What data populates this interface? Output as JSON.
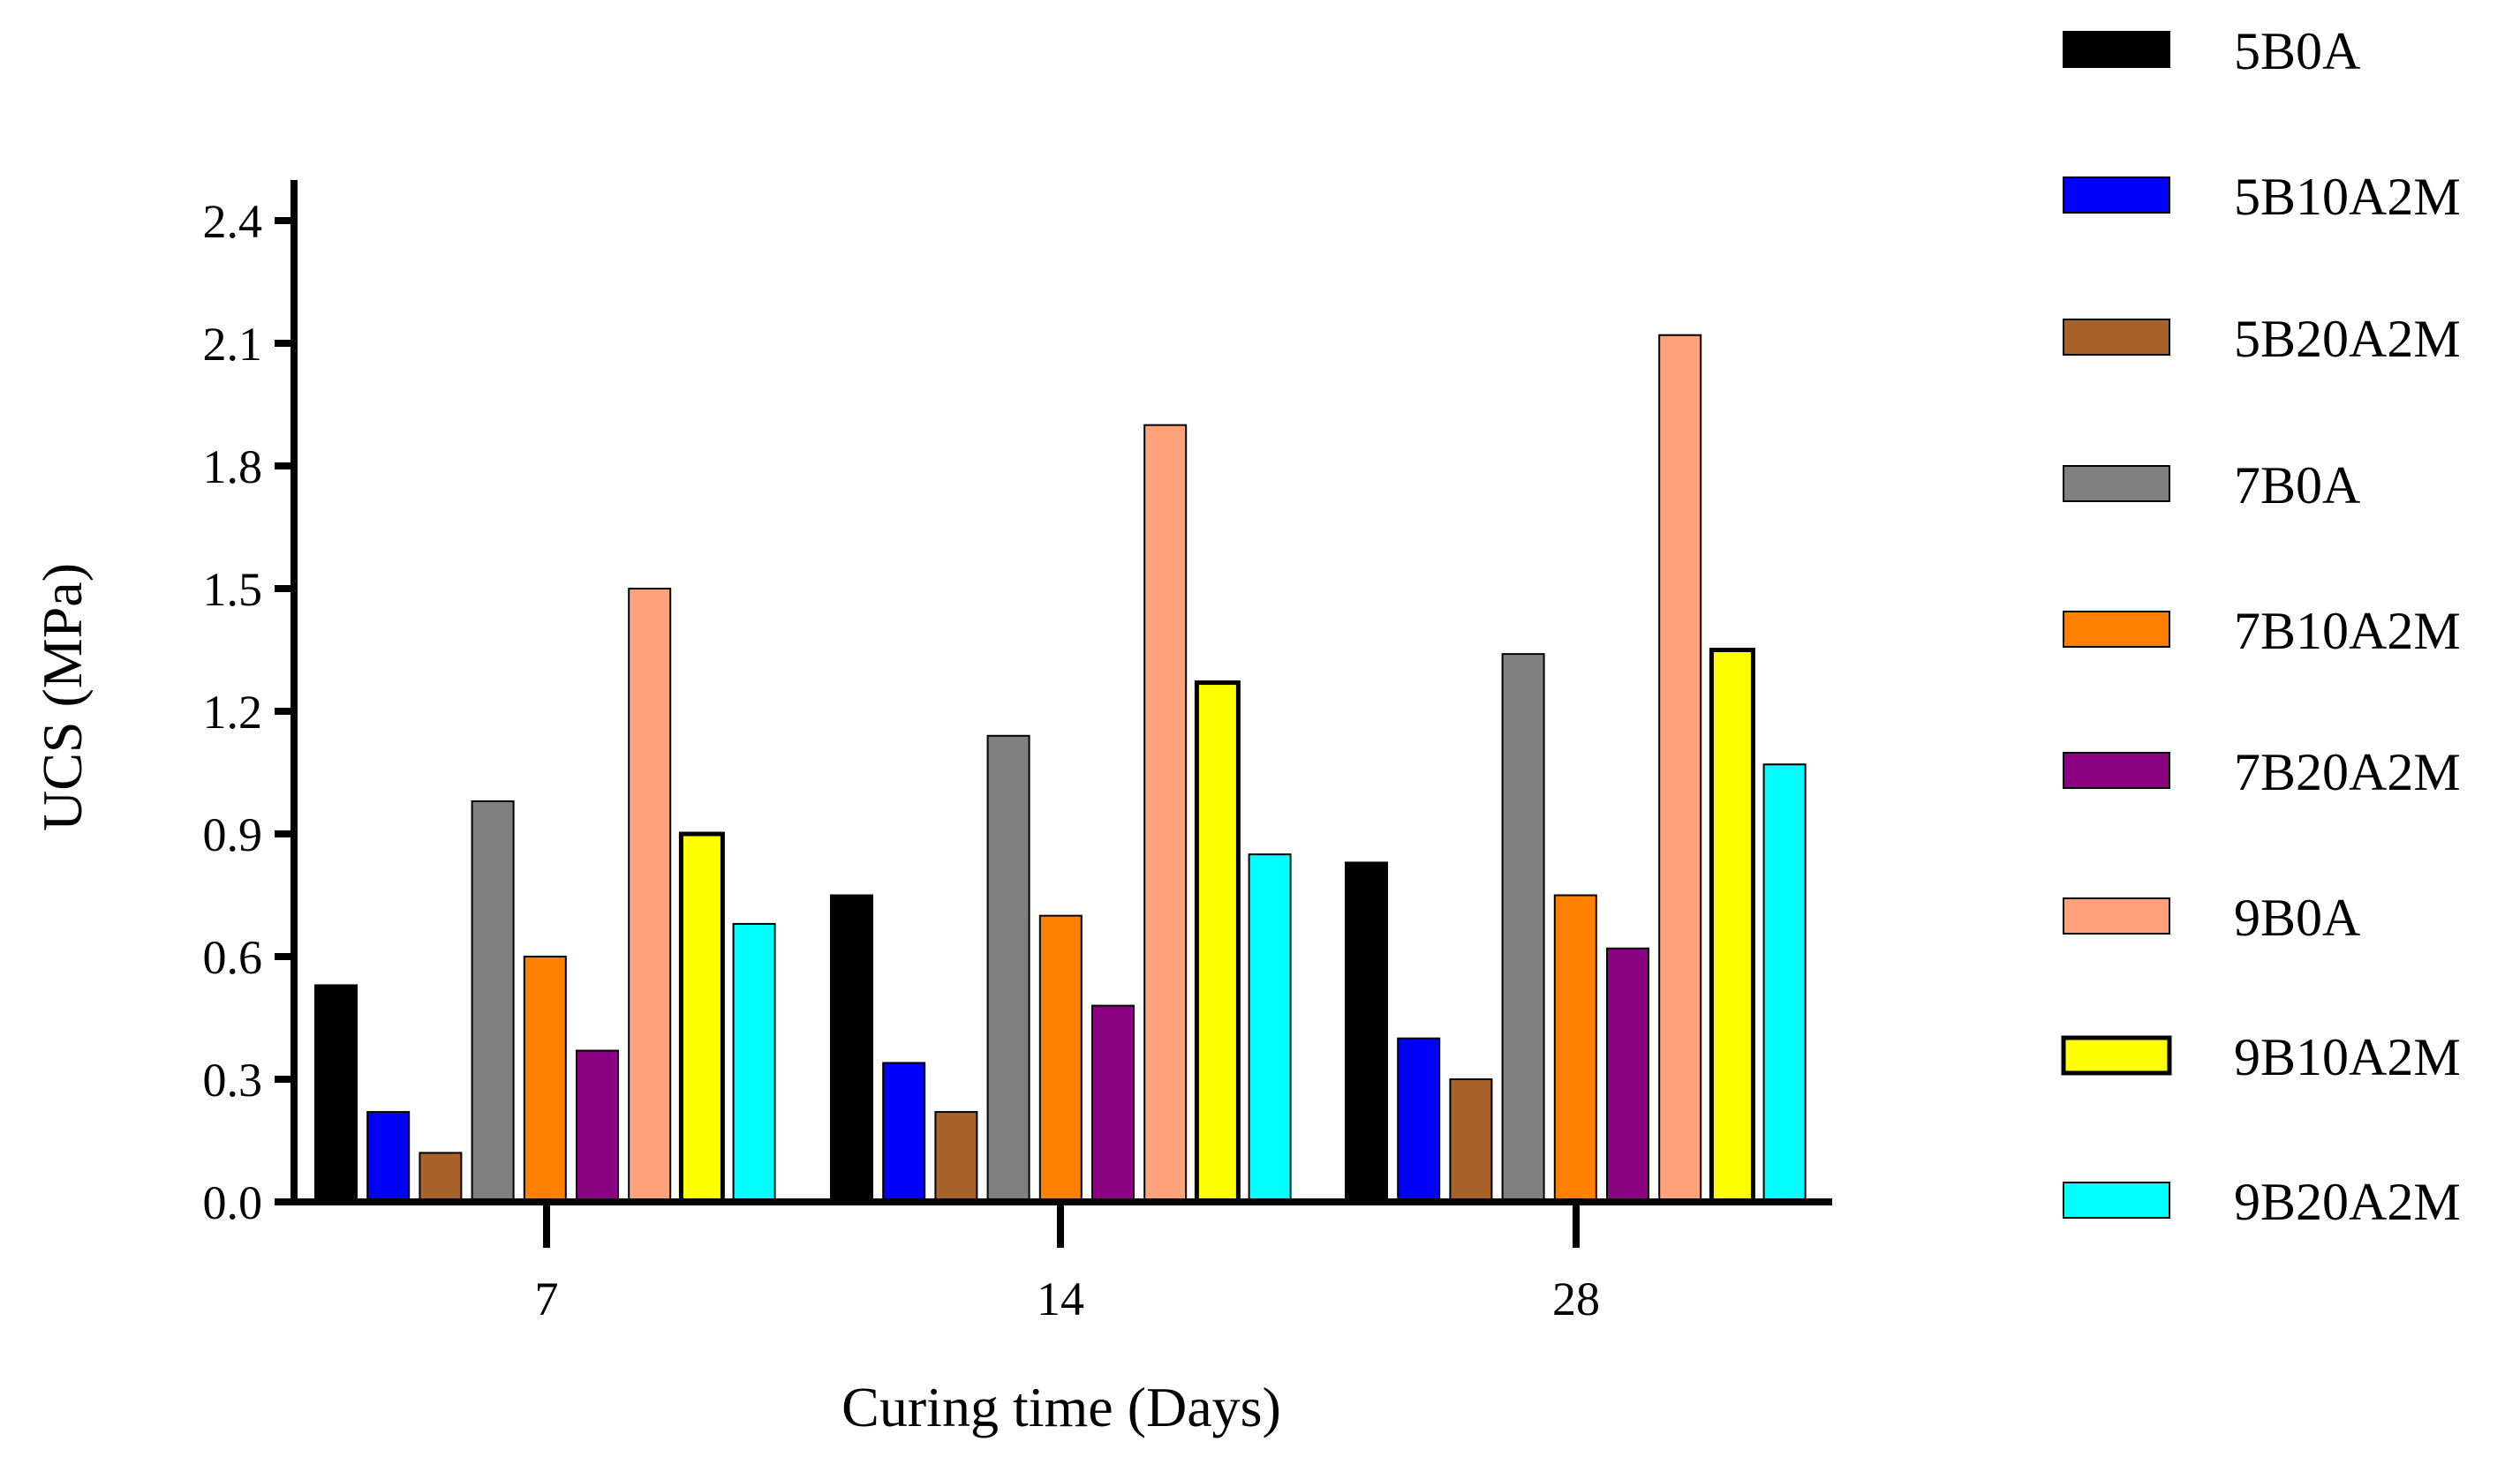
{
  "chart_data": {
    "type": "bar",
    "title": "",
    "xlabel": "Curing time (Days)",
    "ylabel": "UCS (MPa)",
    "ylim": [
      0,
      2.4
    ],
    "yticks": [
      "0.0",
      "0.3",
      "0.6",
      "0.9",
      "1.2",
      "1.5",
      "1.8",
      "2.1",
      "2.4"
    ],
    "categories": [
      "7",
      "14",
      "28"
    ],
    "legend_position": "right",
    "series": [
      {
        "name": "5B0A",
        "color": "#000000",
        "values": [
          0.53,
          0.75,
          0.83
        ]
      },
      {
        "name": "5B10A2M",
        "color": "#0000FF",
        "values": [
          0.22,
          0.34,
          0.4
        ]
      },
      {
        "name": "5B20A2M",
        "color": "#A8622C",
        "values": [
          0.12,
          0.22,
          0.3
        ]
      },
      {
        "name": "7B0A",
        "color": "#808080",
        "values": [
          0.98,
          1.14,
          1.34
        ]
      },
      {
        "name": "7B10A2M",
        "color": "#FF8000",
        "values": [
          0.6,
          0.7,
          0.75
        ]
      },
      {
        "name": "7B20A2M",
        "color": "#8B0080",
        "values": [
          0.37,
          0.48,
          0.62
        ]
      },
      {
        "name": "9B0A",
        "color": "#FFA27A",
        "values": [
          1.5,
          1.9,
          2.12
        ]
      },
      {
        "name": "9B10A2M",
        "color": "#FFFF00",
        "values": [
          0.9,
          1.27,
          1.35
        ]
      },
      {
        "name": "9B20A2M",
        "color": "#00FFFF",
        "values": [
          0.68,
          0.85,
          1.07
        ]
      }
    ]
  }
}
